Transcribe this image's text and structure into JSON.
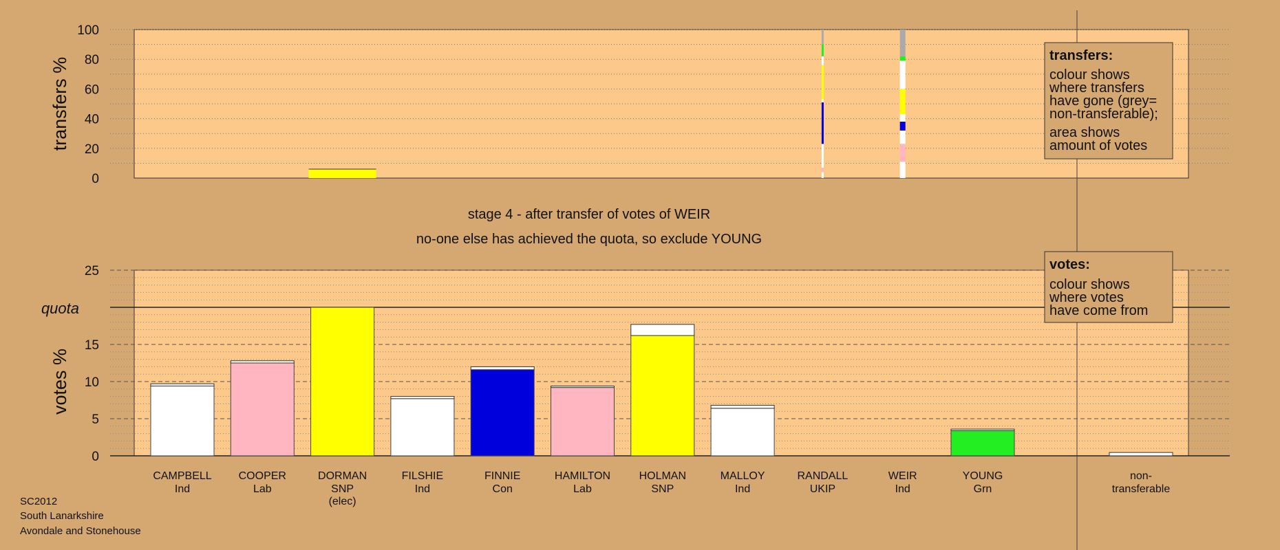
{
  "chart_data": [
    {
      "type": "bar",
      "name": "transfers",
      "ylabel": "transfers %",
      "ylim": [
        0,
        100
      ],
      "yticks": [
        0,
        20,
        40,
        60,
        80,
        100
      ],
      "grid": true,
      "legend": {
        "title": "transfers:",
        "lines": [
          "colour shows",
          "where transfers",
          "have gone (grey=",
          "non-transferable);",
          "area shows",
          "amount of votes"
        ]
      },
      "bars": [
        {
          "candidate": "DORMAN",
          "segments": [
            {
              "color": "#ffff00",
              "value": 6
            }
          ]
        },
        {
          "candidate": "RANDALL",
          "segments": [
            {
              "color": "#ffffff",
              "value": 4
            },
            {
              "color": "#ffb6c1",
              "value": 3
            },
            {
              "color": "#ffffff",
              "value": 16
            },
            {
              "color": "#0000dd",
              "value": 28
            },
            {
              "color": "#ffffff",
              "value": 2
            },
            {
              "color": "#ffff00",
              "value": 23
            },
            {
              "color": "#ffffff",
              "value": 6
            },
            {
              "color": "#22ee22",
              "value": 8
            },
            {
              "color": "#aaaaaa",
              "value": 10
            }
          ]
        },
        {
          "candidate": "WEIR",
          "segments": [
            {
              "color": "#ffffff",
              "value": 11
            },
            {
              "color": "#ffb6c1",
              "value": 12
            },
            {
              "color": "#ffffff",
              "value": 9
            },
            {
              "color": "#0000dd",
              "value": 6
            },
            {
              "color": "#ffffff",
              "value": 5
            },
            {
              "color": "#ffff00",
              "value": 17
            },
            {
              "color": "#ffffff",
              "value": 19
            },
            {
              "color": "#22ee22",
              "value": 3
            },
            {
              "color": "#aaaaaa",
              "value": 18
            }
          ]
        }
      ]
    },
    {
      "type": "bar",
      "name": "votes",
      "ylabel": "votes %",
      "ylim": [
        0,
        25
      ],
      "yticks": [
        0,
        5,
        10,
        15,
        20,
        25
      ],
      "quota": 20,
      "quota_label": "quota",
      "grid": true,
      "legend": {
        "title": "votes:",
        "lines": [
          "colour shows",
          "where votes",
          "have come from"
        ]
      },
      "categories": [
        {
          "name": "CAMPBELL",
          "party": "Ind",
          "color": "#ffffff",
          "value": 9.4,
          "added": 0.3
        },
        {
          "name": "COOPER",
          "party": "Lab",
          "color": "#ffb6c1",
          "value": 12.5,
          "added": 0.3
        },
        {
          "name": "DORMAN",
          "party": "SNP",
          "extra": "(elec)",
          "color": "#ffff00",
          "value": 20.0,
          "added": 0
        },
        {
          "name": "FILSHIE",
          "party": "Ind",
          "color": "#ffffff",
          "value": 7.7,
          "added": 0.3
        },
        {
          "name": "FINNIE",
          "party": "Con",
          "color": "#0000dd",
          "value": 11.6,
          "added": 0.4
        },
        {
          "name": "HAMILTON",
          "party": "Lab",
          "color": "#ffb6c1",
          "value": 9.2,
          "added": 0.2
        },
        {
          "name": "HOLMAN",
          "party": "SNP",
          "color": "#ffff00",
          "value": 16.2,
          "added": 1.5
        },
        {
          "name": "MALLOY",
          "party": "Ind",
          "color": "#ffffff",
          "value": 6.4,
          "added": 0.4
        },
        {
          "name": "RANDALL",
          "party": "UKIP",
          "color": "#ffffff",
          "value": 0,
          "added": 0
        },
        {
          "name": "WEIR",
          "party": "Ind",
          "color": "#ffffff",
          "value": 0,
          "added": 0
        },
        {
          "name": "YOUNG",
          "party": "Grn",
          "color": "#22ee22",
          "value": 3.4,
          "added": 0.2
        }
      ],
      "nontransferable": {
        "label1": "non-",
        "label2": "transferable",
        "value": 0.45,
        "color": "#aaaaaa"
      }
    }
  ],
  "captions": {
    "line1": "stage 4 - after transfer of votes of WEIR",
    "line2": "no-one else has achieved the quota, so exclude YOUNG"
  },
  "footer": [
    "SC2012",
    "South Lanarkshire",
    "Avondale and Stonehouse"
  ],
  "colors": {
    "background": "#d4a870",
    "plot": "#fdc98a",
    "legend_box": "#d4a870"
  }
}
